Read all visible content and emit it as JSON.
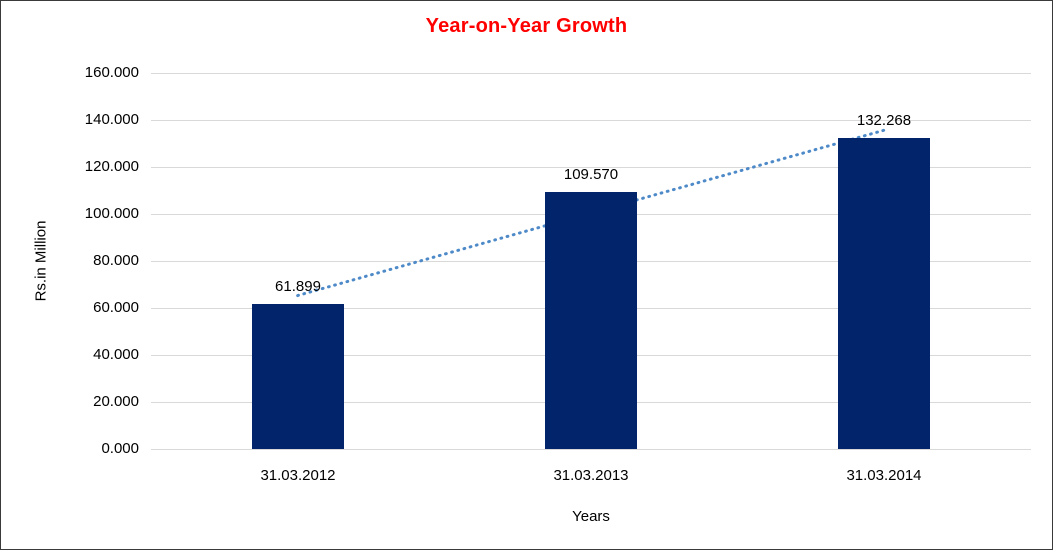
{
  "frame": {
    "background": "#FFFFFF",
    "border_color": "#3A3A3A"
  },
  "chart_data": {
    "type": "bar",
    "title": "Year-on-Year Growth",
    "title_color": "#FF0000",
    "xlabel": "Years",
    "ylabel": "Rs.in Million",
    "categories": [
      "31.03.2012",
      "31.03.2013",
      "31.03.2014"
    ],
    "values": [
      61.899,
      109.57,
      132.268
    ],
    "value_labels": [
      "61.899",
      "109.570",
      "132.268"
    ],
    "ylim": [
      0,
      160
    ],
    "yticks": [
      0,
      20,
      40,
      60,
      80,
      100,
      120,
      140,
      160
    ],
    "ytick_labels": [
      "0.000",
      "20.000",
      "40.000",
      "60.000",
      "80.000",
      "100.000",
      "120.000",
      "140.000",
      "160.000"
    ],
    "grid": "horizontal",
    "gridline_color": "#D9D9D9",
    "bar_color": "#02246B",
    "legend": "none",
    "trendline": {
      "type": "linear",
      "style": "dotted",
      "color": "#4E8AC8"
    }
  }
}
